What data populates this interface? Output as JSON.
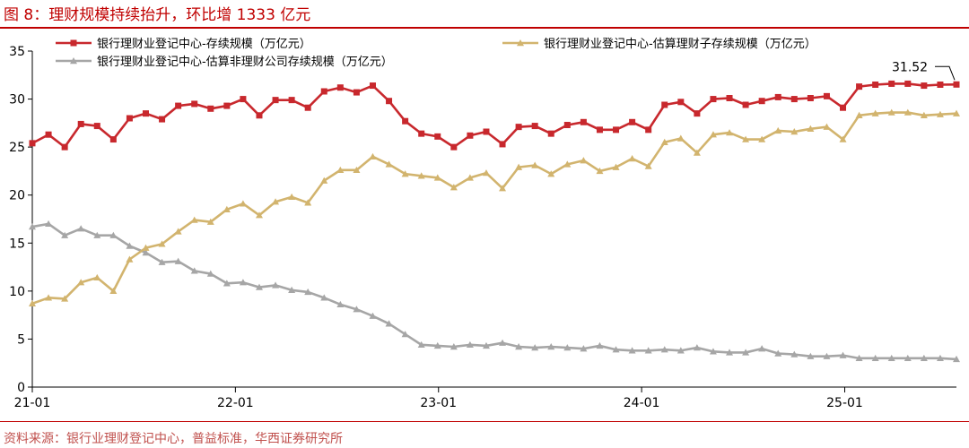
{
  "header": {
    "title": "图 8：理财规模持续抬升，环比增 1333 亿元"
  },
  "footer": {
    "source": "资料来源：银行业理财登记中心，普益标准，华西证券研究所"
  },
  "colors": {
    "title": "#c00000",
    "series_red": "#c8282d",
    "series_gold": "#d2b46e",
    "series_gray": "#a6a6a6",
    "source_text": "#c0504d"
  },
  "chart_data": {
    "type": "line",
    "title": "",
    "xlabel": "",
    "ylabel": "",
    "ylim": [
      0,
      35
    ],
    "yticks": [
      0,
      5,
      10,
      15,
      20,
      25,
      30,
      35
    ],
    "xtick_labels": [
      "21-01",
      "22-01",
      "23-01",
      "24-01",
      "25-01"
    ],
    "xtick_index": [
      0,
      12,
      24,
      36,
      48
    ],
    "grid": false,
    "legend_position": "top",
    "annotation": {
      "text": "31.52",
      "series": 0,
      "point": "last"
    },
    "x_note": "index 0 = 2021-01, monthly through 2025-05, then weekly through late 2025-06",
    "series": [
      {
        "name": "银行理财业登记中心-存续规模（万亿元）",
        "color": "#c8282d",
        "marker": "square",
        "values": [
          25.4,
          26.3,
          25.0,
          27.4,
          27.2,
          25.8,
          28.0,
          28.5,
          27.9,
          29.3,
          29.5,
          29.0,
          29.3,
          30.0,
          28.3,
          29.9,
          29.9,
          29.1,
          30.8,
          31.2,
          30.7,
          31.4,
          29.8,
          27.7,
          26.4,
          26.1,
          25.0,
          26.2,
          26.6,
          25.3,
          27.1,
          27.2,
          26.4,
          27.3,
          27.6,
          26.8,
          26.8,
          27.6,
          26.8,
          29.4,
          29.7,
          28.5,
          30.0,
          30.1,
          29.4,
          29.8,
          30.2,
          30.0,
          30.1,
          30.3,
          29.1,
          31.3,
          31.5,
          31.6,
          31.6,
          31.4,
          31.5,
          31.52
        ]
      },
      {
        "name": "银行理财业登记中心-估算理财子存续规模（万亿元）",
        "color": "#d2b46e",
        "marker": "triangle",
        "values": [
          8.7,
          9.3,
          9.2,
          10.9,
          11.4,
          10.0,
          13.3,
          14.5,
          14.9,
          16.2,
          17.4,
          17.2,
          18.5,
          19.1,
          17.9,
          19.3,
          19.8,
          19.2,
          21.5,
          22.6,
          22.6,
          24.0,
          23.2,
          22.2,
          22.0,
          21.8,
          20.8,
          21.8,
          22.3,
          20.7,
          22.9,
          23.1,
          22.2,
          23.2,
          23.6,
          22.5,
          22.9,
          23.8,
          23.0,
          25.5,
          25.9,
          24.4,
          26.3,
          26.5,
          25.8,
          25.8,
          26.7,
          26.6,
          26.9,
          27.1,
          25.8,
          28.3,
          28.5,
          28.6,
          28.6,
          28.3,
          28.4,
          28.5
        ]
      },
      {
        "name": "银行理财业登记中心-估算非理财公司存续规模（万亿元）",
        "color": "#a6a6a6",
        "marker": "triangle",
        "values": [
          16.7,
          17.0,
          15.8,
          16.5,
          15.8,
          15.8,
          14.7,
          14.0,
          13.0,
          13.1,
          12.1,
          11.8,
          10.8,
          10.9,
          10.4,
          10.6,
          10.1,
          9.9,
          9.3,
          8.6,
          8.1,
          7.4,
          6.6,
          5.5,
          4.4,
          4.3,
          4.2,
          4.4,
          4.3,
          4.6,
          4.2,
          4.1,
          4.2,
          4.1,
          4.0,
          4.3,
          3.9,
          3.8,
          3.8,
          3.9,
          3.8,
          4.1,
          3.7,
          3.6,
          3.6,
          4.0,
          3.5,
          3.4,
          3.2,
          3.2,
          3.3,
          3.0,
          3.0,
          3.0,
          3.0,
          3.0,
          3.0,
          2.9
        ]
      }
    ]
  }
}
